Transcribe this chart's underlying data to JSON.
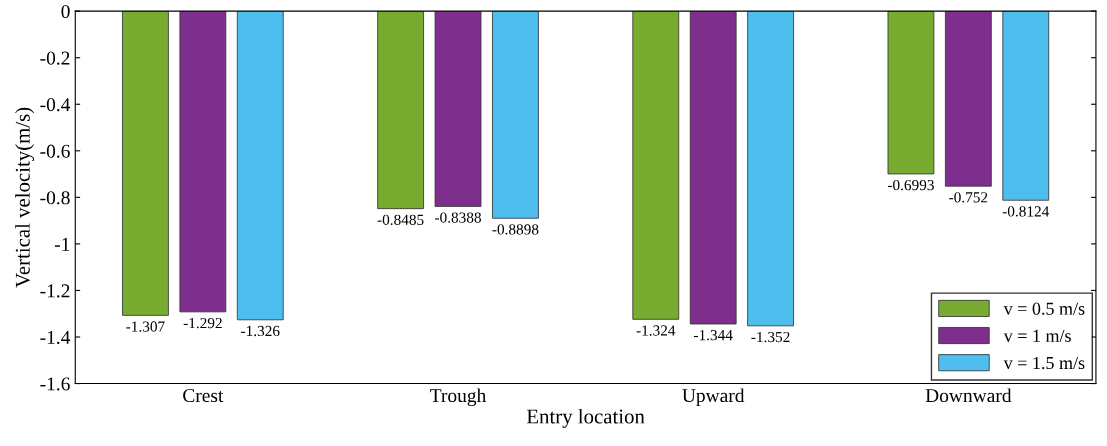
{
  "chart_data": {
    "type": "bar",
    "xlabel": "Entry location",
    "ylabel": "Vertical velocity(m/s)",
    "categories": [
      "Crest",
      "Trough",
      "Upward",
      "Downward"
    ],
    "series": [
      {
        "name": "v = 0.5 m/s",
        "color": "#77ac30",
        "values": [
          -1.307,
          -0.8485,
          -1.324,
          -0.6993
        ]
      },
      {
        "name": "v = 1 m/s",
        "color": "#7e2f8e",
        "values": [
          -1.292,
          -0.8388,
          -1.344,
          -0.752
        ]
      },
      {
        "name": "v = 1.5 m/s",
        "color": "#4dbeee",
        "values": [
          -1.326,
          -0.8898,
          -1.352,
          -0.8124
        ]
      }
    ],
    "ylim": [
      -1.6,
      0
    ],
    "yticks": [
      -1.6,
      -1.4,
      -1.2,
      -1,
      -0.8,
      -0.6,
      -0.4,
      -0.2,
      0
    ],
    "data_labels": true,
    "legend": "bottom right",
    "grid": false
  }
}
